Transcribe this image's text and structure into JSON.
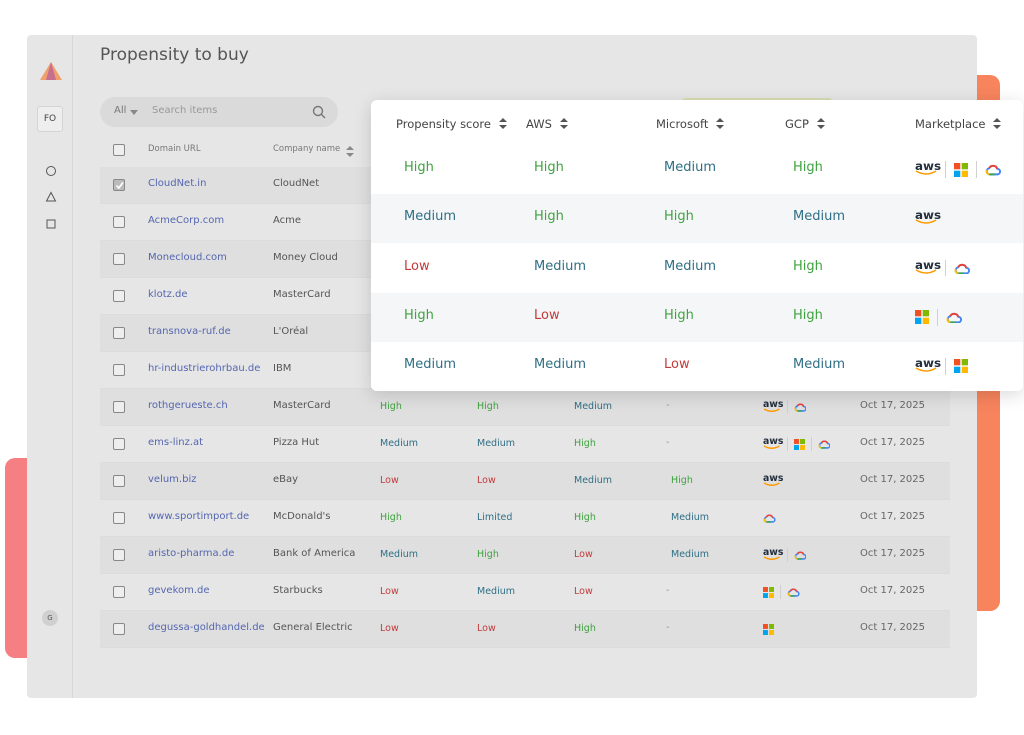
{
  "title": "Propensity to buy",
  "sidebar": {
    "workspace": "FO",
    "user": "G"
  },
  "search": {
    "filter": "All",
    "placeholder": "Search items"
  },
  "logo_text": "aws",
  "badge_colors": {
    "High": "#3fa33f",
    "Medium": "#2f6f86",
    "Low": "#c23b3b",
    "Limited": "#2f6f86"
  },
  "table": {
    "columns": [
      "Domain URL",
      "Company name"
    ],
    "rows": [
      {
        "domain": "CloudNet.in",
        "company": "CloudNet"
      },
      {
        "domain": "AcmeCorp.com",
        "company": "Acme"
      },
      {
        "domain": "Monecloud.com",
        "company": "Money Cloud"
      },
      {
        "domain": "klotz.de",
        "company": "MasterCard"
      },
      {
        "domain": "transnova-ruf.de",
        "company": "L'Oréal"
      },
      {
        "domain": "hr-industrierohrbau.de",
        "company": "IBM"
      },
      {
        "domain": "rothgerueste.ch",
        "company": "MasterCard",
        "cells": [
          "High",
          "High",
          "Medium",
          "-"
        ],
        "date": "Oct 17, 2025"
      },
      {
        "domain": "ems-linz.at",
        "company": "Pizza Hut",
        "cells": [
          "Medium",
          "Medium",
          "High",
          "-"
        ],
        "date": "Oct 17, 2025"
      },
      {
        "domain": "velum.biz",
        "company": "eBay",
        "cells": [
          "Low",
          "Low",
          "Medium",
          "High"
        ],
        "date": "Oct 17, 2025"
      },
      {
        "domain": "www.sportimport.de",
        "company": "McDonald's",
        "cells": [
          "High",
          "Limited",
          "High",
          "Medium"
        ],
        "date": "Oct 17, 2025"
      },
      {
        "domain": "aristo-pharma.de",
        "company": "Bank of America",
        "cells": [
          "Medium",
          "High",
          "Low",
          "Medium"
        ],
        "date": "Oct 17, 2025"
      },
      {
        "domain": "gevekom.de",
        "company": "Starbucks",
        "cells": [
          "Low",
          "Medium",
          "Low",
          "-"
        ],
        "date": "Oct 17, 2025"
      },
      {
        "domain": "degussa-goldhandel.de",
        "company": "General Electric",
        "cells": [
          "Low",
          "Low",
          "High",
          "-"
        ],
        "date": "Oct 17, 2025"
      }
    ]
  },
  "overlay": {
    "columns": [
      "Propensity score",
      "AWS",
      "Microsoft",
      "GCP",
      "Marketplace"
    ],
    "rows": [
      [
        "High",
        "High",
        "Medium",
        "High"
      ],
      [
        "Medium",
        "High",
        "High",
        "Medium"
      ],
      [
        "Low",
        "Medium",
        "Medium",
        "High"
      ],
      [
        "High",
        "Low",
        "High",
        "High"
      ],
      [
        "Medium",
        "Medium",
        "Low",
        "Medium"
      ]
    ]
  }
}
